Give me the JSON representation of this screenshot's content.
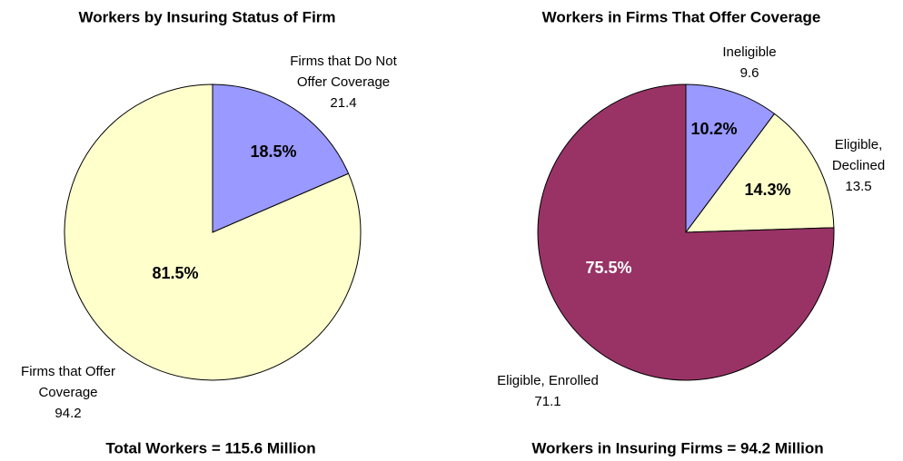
{
  "chart_data": [
    {
      "type": "pie",
      "title": "Workers by Insuring Status of Firm",
      "categories": [
        [
          "Firms that Do Not",
          "Offer Coverage"
        ],
        [
          "Firms that Offer",
          "Coverage"
        ]
      ],
      "amounts": [
        21.4,
        94.2
      ],
      "values": [
        18.5,
        81.5
      ],
      "value_labels": [
        "18.5%",
        "81.5%"
      ],
      "colors": [
        "#9999ff",
        "#ffffcc"
      ],
      "value_label_colors": [
        "#000000",
        "#000000"
      ],
      "caption": "Total Workers = 115.6 Million"
    },
    {
      "type": "pie",
      "title": "Workers in Firms That Offer Coverage",
      "categories": [
        [
          "Ineligible"
        ],
        [
          "Eligible,",
          "Declined"
        ],
        [
          "Eligible, Enrolled"
        ]
      ],
      "amounts": [
        9.6,
        13.5,
        71.1
      ],
      "values": [
        10.2,
        14.3,
        75.5
      ],
      "value_labels": [
        "10.2%",
        "14.3%",
        "75.5%"
      ],
      "colors": [
        "#9999ff",
        "#ffffcc",
        "#993366"
      ],
      "value_label_colors": [
        "#000000",
        "#000000",
        "#ffffff"
      ],
      "caption": "Workers in Insuring Firms = 94.2 Million"
    }
  ]
}
